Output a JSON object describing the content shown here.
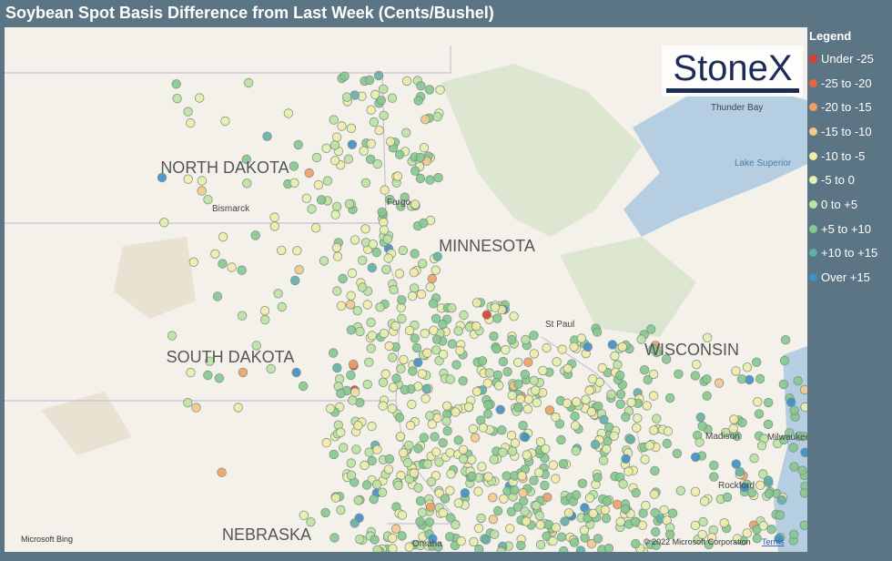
{
  "header": {
    "title": "Soybean Spot Basis Difference from Last Week (Cents/Bushel)"
  },
  "legend": {
    "title": "Legend",
    "items": [
      {
        "label": "Under -25",
        "color": "#e03a2c"
      },
      {
        "label": "-25 to -20",
        "color": "#e8653e"
      },
      {
        "label": "-20 to -15",
        "color": "#f0a065"
      },
      {
        "label": "-15 to -10",
        "color": "#f6c98a"
      },
      {
        "label": "-10 to -5",
        "color": "#f4eca8"
      },
      {
        "label": "-5 to 0",
        "color": "#e6f0ae"
      },
      {
        "label": "0 to +5",
        "color": "#bde3a2"
      },
      {
        "label": "+5 to +10",
        "color": "#86c98f"
      },
      {
        "label": "+10 to +15",
        "color": "#62b0a9"
      },
      {
        "label": "Over +15",
        "color": "#3f8fc8"
      }
    ]
  },
  "map": {
    "states": [
      "NORTH DAKOTA",
      "MINNESOTA",
      "SOUTH DAKOTA",
      "WISCONSIN",
      "NEBRASKA"
    ],
    "places": [
      "Bismarck",
      "Fargo",
      "St Paul",
      "Thunder Bay",
      "Lake Superior",
      "Madison",
      "Milwaukee",
      "Rockford",
      "Omaha"
    ],
    "logo": "StoneX",
    "attribution": {
      "provider": "Microsoft Bing",
      "copyright": "© 2022 Microsoft Corporation",
      "terms": "Terms"
    }
  }
}
